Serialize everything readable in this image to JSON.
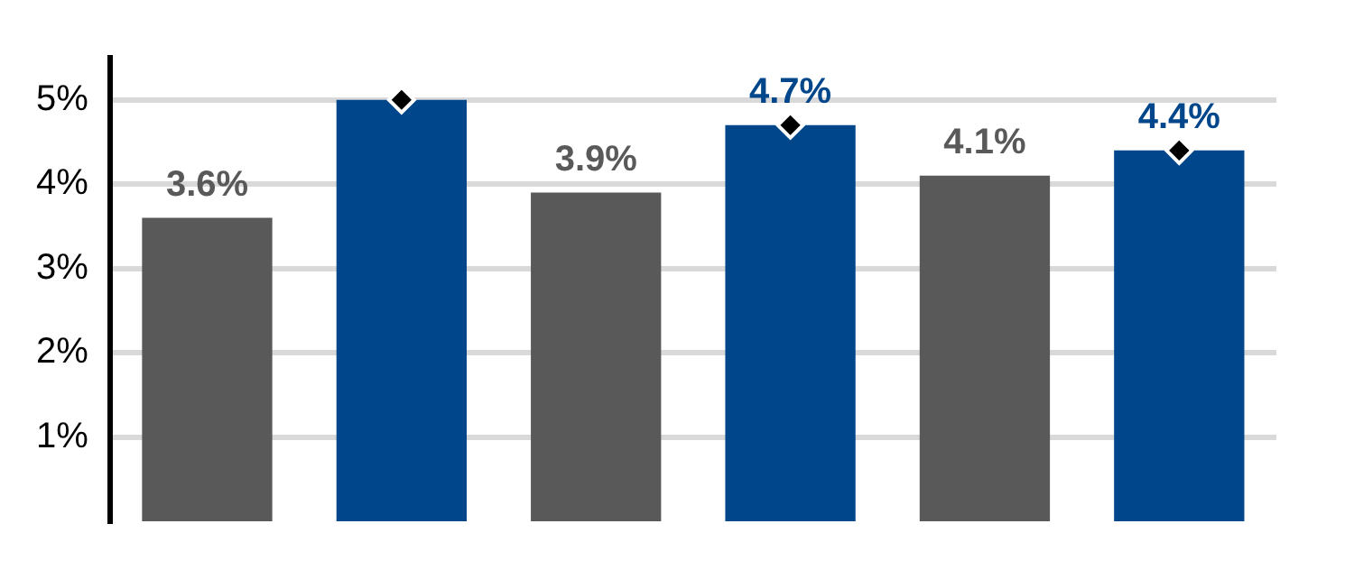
{
  "chart_data": {
    "type": "bar",
    "categories": [
      null,
      null,
      null,
      null,
      null,
      null
    ],
    "series": [
      {
        "colors": [
          "#595959",
          "#00468b",
          "#595959",
          "#00468b",
          "#595959",
          "#00468b"
        ],
        "values": [
          3.6,
          5.0,
          3.9,
          4.7,
          4.1,
          4.4
        ],
        "value_labels": [
          "3.6%",
          null,
          "3.9%",
          "4.7%",
          "4.1%",
          "4.4%"
        ]
      },
      {
        "type": "scatter",
        "color": "#000000",
        "marker": "diamond",
        "values": [
          null,
          5.0,
          null,
          4.7,
          null,
          4.4
        ]
      }
    ],
    "ylim": [
      0,
      5.5
    ],
    "yticks": [
      {
        "value": 1,
        "label": "1%"
      },
      {
        "value": 2,
        "label": "2%"
      },
      {
        "value": 3,
        "label": "3%"
      },
      {
        "value": 4,
        "label": "4%"
      },
      {
        "value": 5,
        "label": "5%"
      }
    ],
    "grid": "y",
    "tick_labels": "y",
    "legend": false
  }
}
